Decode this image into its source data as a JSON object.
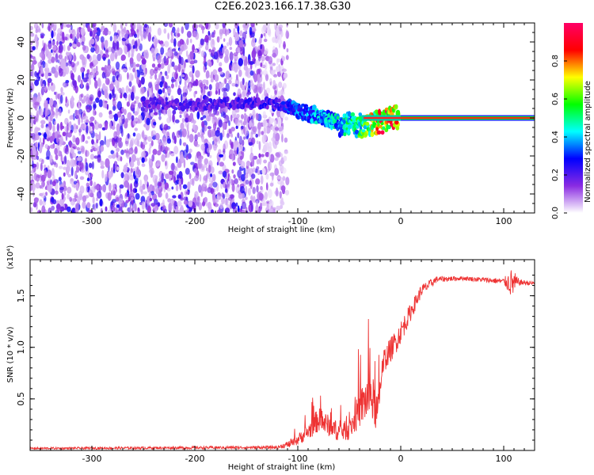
{
  "title": "C2E6.2023.166.17.38.G30",
  "chart_data": [
    {
      "type": "heatmap",
      "title": "C2E6.2023.166.17.38.G30",
      "xlabel": "Height of straight line (km)",
      "ylabel": "Frequency (Hz)",
      "xlim": [
        -360,
        130
      ],
      "ylim": [
        -50,
        50
      ],
      "x_ticks": [
        -300,
        -200,
        -100,
        0,
        100
      ],
      "y_ticks": [
        -40,
        -20,
        0,
        20,
        40
      ],
      "colorbar": {
        "label": "Normalized spectral amplitude",
        "range": [
          0,
          1
        ],
        "ticks": [
          0.0,
          0.2,
          0.4,
          0.6,
          0.8
        ],
        "colormap": [
          "#ffffff",
          "#8a2be2",
          "#0000ff",
          "#00ffff",
          "#00ff00",
          "#ffff00",
          "#ff0000",
          "#ff0066"
        ]
      },
      "features": {
        "noise_region_x": [
          -360,
          -125
        ],
        "signal_track": [
          {
            "x": -250,
            "freq": 8,
            "amp": 0.2
          },
          {
            "x": -200,
            "freq": 7,
            "amp": 0.2
          },
          {
            "x": -150,
            "freq": 8,
            "amp": 0.22
          },
          {
            "x": -120,
            "freq": 7,
            "amp": 0.25
          },
          {
            "x": -100,
            "freq": 4,
            "amp": 0.35
          },
          {
            "x": -80,
            "freq": 1,
            "amp": 0.4
          },
          {
            "x": -60,
            "freq": -3,
            "amp": 0.45
          },
          {
            "x": -40,
            "freq": -4,
            "amp": 0.55
          },
          {
            "x": -20,
            "freq": -2,
            "amp": 0.8
          },
          {
            "x": 0,
            "freq": 1,
            "amp": 0.85
          },
          {
            "x": 130,
            "freq": 0,
            "amp": 0.95
          }
        ],
        "steady_line_freq": 0
      }
    },
    {
      "type": "line",
      "xlabel": "Height of straight line (km)",
      "ylabel": "SNR (10 * v/v)",
      "y_multiplier": "(x10⁴)",
      "xlim": [
        -360,
        130
      ],
      "ylim": [
        0,
        1.85
      ],
      "x_ticks": [
        -300,
        -200,
        -100,
        0,
        100
      ],
      "y_ticks": [
        0.5,
        1.0,
        1.5
      ],
      "series": [
        {
          "color": "#ee3333",
          "envelope": [
            {
              "x": -360,
              "y": 0.02,
              "spread": 0.01
            },
            {
              "x": -120,
              "y": 0.03,
              "spread": 0.015
            },
            {
              "x": -105,
              "y": 0.07,
              "spread": 0.04
            },
            {
              "x": -90,
              "y": 0.18,
              "spread": 0.08
            },
            {
              "x": -80,
              "y": 0.3,
              "spread": 0.12
            },
            {
              "x": -60,
              "y": 0.18,
              "spread": 0.09
            },
            {
              "x": -50,
              "y": 0.2,
              "spread": 0.1
            },
            {
              "x": -40,
              "y": 0.4,
              "spread": 0.18
            },
            {
              "x": -30,
              "y": 0.55,
              "spread": 0.25
            },
            {
              "x": -22,
              "y": 0.35,
              "spread": 0.2
            },
            {
              "x": -18,
              "y": 0.85,
              "spread": 0.12
            },
            {
              "x": -5,
              "y": 1.05,
              "spread": 0.12
            },
            {
              "x": 5,
              "y": 1.25,
              "spread": 0.1
            },
            {
              "x": 20,
              "y": 1.55,
              "spread": 0.06
            },
            {
              "x": 35,
              "y": 1.66,
              "spread": 0.03
            },
            {
              "x": 60,
              "y": 1.67,
              "spread": 0.02
            },
            {
              "x": 100,
              "y": 1.64,
              "spread": 0.03
            },
            {
              "x": 108,
              "y": 1.62,
              "spread": 0.15
            },
            {
              "x": 115,
              "y": 1.63,
              "spread": 0.03
            },
            {
              "x": 130,
              "y": 1.62,
              "spread": 0.02
            }
          ]
        }
      ]
    }
  ]
}
